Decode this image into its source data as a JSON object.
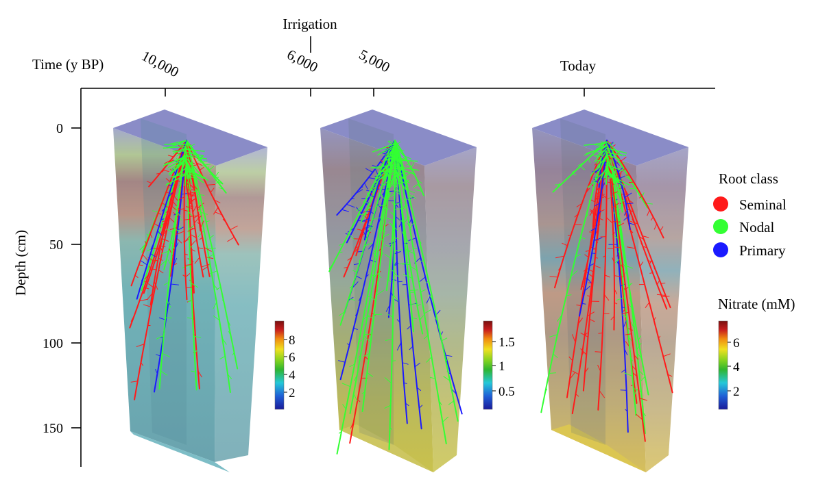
{
  "time_axis": {
    "label": "Time (y BP)",
    "ticks": [
      "10,000",
      "6,000",
      "5,000",
      "Today"
    ],
    "event_label": "Irrigation"
  },
  "depth_axis": {
    "label": "Depth (cm)",
    "ticks": [
      "0",
      "50",
      "100",
      "150"
    ]
  },
  "legend": {
    "title": "Root class",
    "items": [
      {
        "label": "Seminal",
        "color": "#ff1a1a"
      },
      {
        "label": "Nodal",
        "color": "#33ff33"
      },
      {
        "label": "Primary",
        "color": "#1a1aff"
      }
    ]
  },
  "colorbar": {
    "title": "Nitrate (mM)",
    "bars": [
      {
        "ticks": [
          "8",
          "6",
          "4",
          "2"
        ]
      },
      {
        "ticks": [
          "1.5",
          "1",
          "0.5"
        ]
      },
      {
        "ticks": [
          "6",
          "4",
          "2"
        ]
      }
    ]
  }
}
